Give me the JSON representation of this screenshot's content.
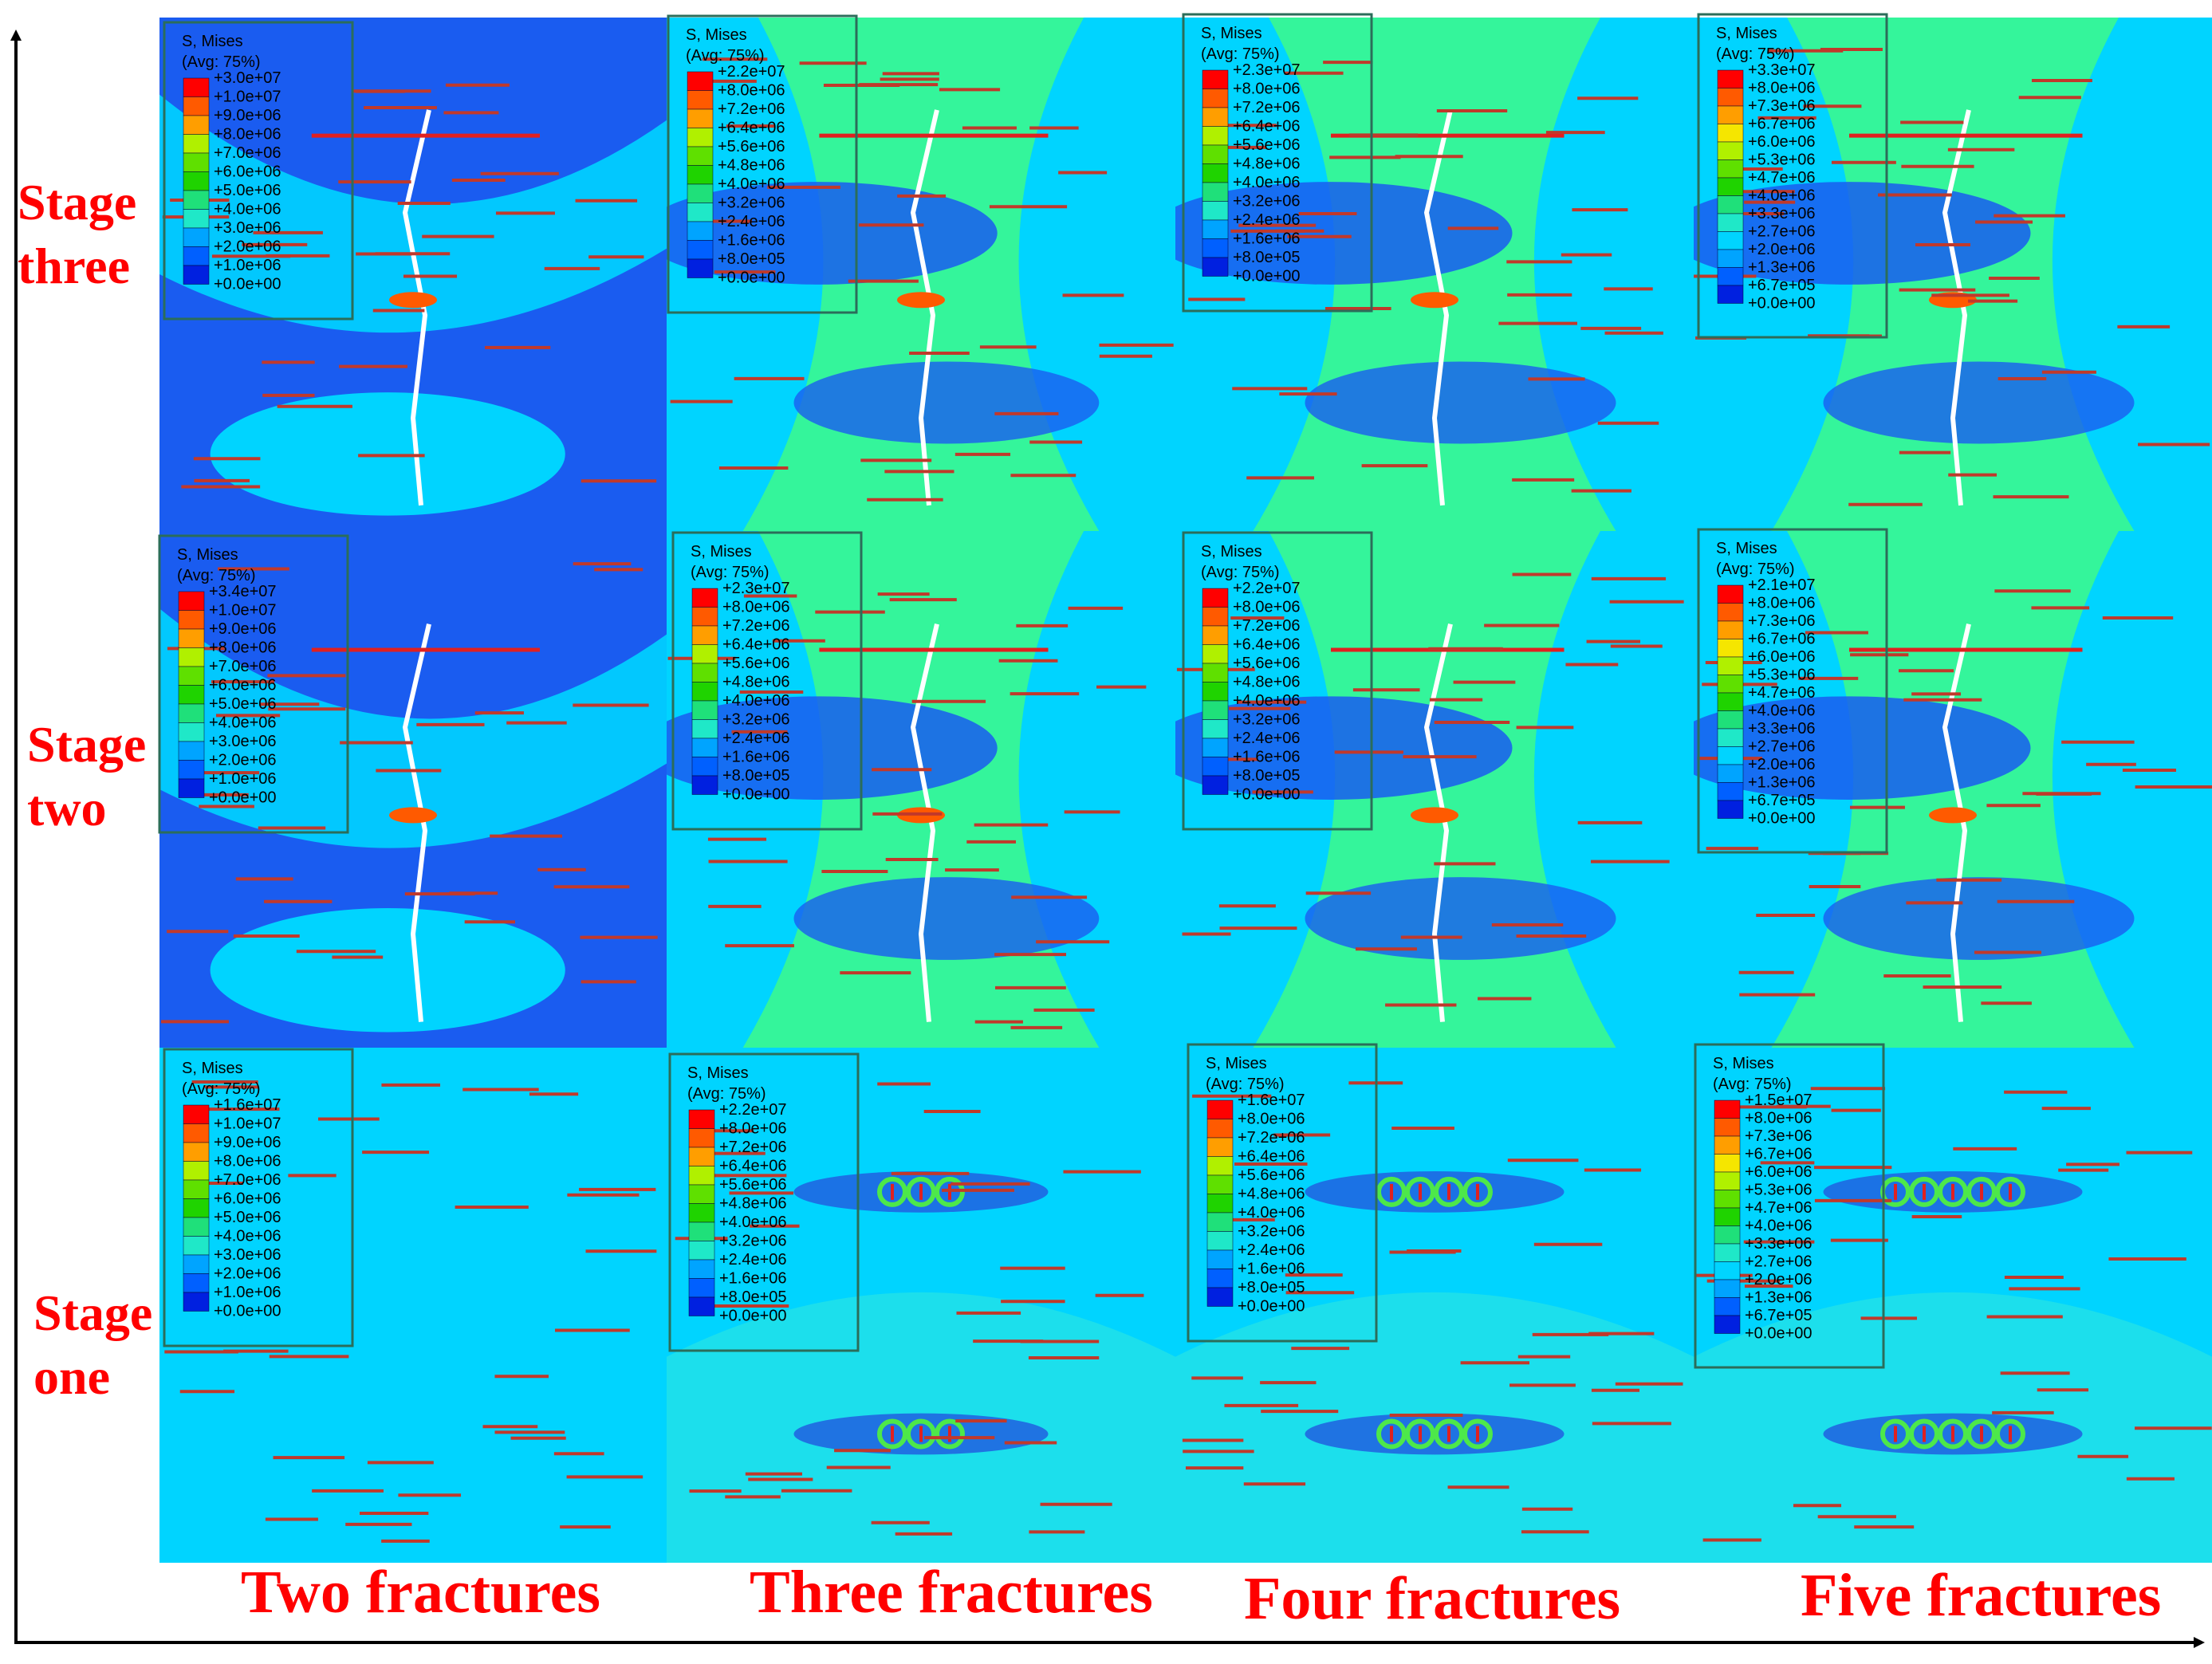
{
  "axes": {
    "x_arrow": "horizontal-axis-arrow",
    "y_arrow": "vertical-axis-arrow"
  },
  "row_labels": [
    [
      "Stage",
      "three"
    ],
    [
      "Stage",
      "two"
    ],
    [
      "Stage",
      "one"
    ]
  ],
  "column_labels": [
    "Two fractures",
    "Three fractures",
    "Four fractures",
    "Five fractures"
  ],
  "colors": {
    "label_red": "#ff0000",
    "fracture_line": "#c0392b",
    "dark_blue": "#1a5cf0",
    "light_blue": "#00d4ff",
    "cyan": "#2fe6e0",
    "green": "#3dfa8a",
    "legend_scale": [
      "#ff0000",
      "#ff5a00",
      "#ff9e00",
      "#f5e600",
      "#b0f000",
      "#5fe000",
      "#1fd300",
      "#1fe07a",
      "#1fe8c8",
      "#00d4ff",
      "#00a4ff",
      "#0060ff",
      "#0020e0"
    ]
  },
  "legends": [
    {
      "title": "S, Mises",
      "subtitle": "(Avg: 75%)",
      "values": [
        "+3.0e+07",
        "+1.0e+07",
        "+9.0e+06",
        "+8.0e+06",
        "+7.0e+06",
        "+6.0e+06",
        "+5.0e+06",
        "+4.0e+06",
        "+3.0e+06",
        "+2.0e+06",
        "+1.0e+06",
        "+0.0e+00"
      ]
    },
    {
      "title": "S, Mises",
      "subtitle": "(Avg: 75%)",
      "values": [
        "+2.2e+07",
        "+8.0e+06",
        "+7.2e+06",
        "+6.4e+06",
        "+5.6e+06",
        "+4.8e+06",
        "+4.0e+06",
        "+3.2e+06",
        "+2.4e+06",
        "+1.6e+06",
        "+8.0e+05",
        "+0.0e+00"
      ]
    },
    {
      "title": "S, Mises",
      "subtitle": "(Avg: 75%)",
      "values": [
        "+2.3e+07",
        "+8.0e+06",
        "+7.2e+06",
        "+6.4e+06",
        "+5.6e+06",
        "+4.8e+06",
        "+4.0e+06",
        "+3.2e+06",
        "+2.4e+06",
        "+1.6e+06",
        "+8.0e+05",
        "+0.0e+00"
      ]
    },
    {
      "title": "S, Mises",
      "subtitle": "(Avg: 75%)",
      "values": [
        "+3.3e+07",
        "+8.0e+06",
        "+7.3e+06",
        "+6.7e+06",
        "+6.0e+06",
        "+5.3e+06",
        "+4.7e+06",
        "+4.0e+06",
        "+3.3e+06",
        "+2.7e+06",
        "+2.0e+06",
        "+1.3e+06",
        "+6.7e+05",
        "+0.0e+00"
      ]
    },
    {
      "title": "S, Mises",
      "subtitle": "(Avg: 75%)",
      "values": [
        "+3.4e+07",
        "+1.0e+07",
        "+9.0e+06",
        "+8.0e+06",
        "+7.0e+06",
        "+6.0e+06",
        "+5.0e+06",
        "+4.0e+06",
        "+3.0e+06",
        "+2.0e+06",
        "+1.0e+06",
        "+0.0e+00"
      ]
    },
    {
      "title": "S, Mises",
      "subtitle": "(Avg: 75%)",
      "values": [
        "+2.3e+07",
        "+8.0e+06",
        "+7.2e+06",
        "+6.4e+06",
        "+5.6e+06",
        "+4.8e+06",
        "+4.0e+06",
        "+3.2e+06",
        "+2.4e+06",
        "+1.6e+06",
        "+8.0e+05",
        "+0.0e+00"
      ]
    },
    {
      "title": "S, Mises",
      "subtitle": "(Avg: 75%)",
      "values": [
        "+2.2e+07",
        "+8.0e+06",
        "+7.2e+06",
        "+6.4e+06",
        "+5.6e+06",
        "+4.8e+06",
        "+4.0e+06",
        "+3.2e+06",
        "+2.4e+06",
        "+1.6e+06",
        "+8.0e+05",
        "+0.0e+00"
      ]
    },
    {
      "title": "S, Mises",
      "subtitle": "(Avg: 75%)",
      "values": [
        "+2.1e+07",
        "+8.0e+06",
        "+7.3e+06",
        "+6.7e+06",
        "+6.0e+06",
        "+5.3e+06",
        "+4.7e+06",
        "+4.0e+06",
        "+3.3e+06",
        "+2.7e+06",
        "+2.0e+06",
        "+1.3e+06",
        "+6.7e+05",
        "+0.0e+00"
      ]
    },
    {
      "title": "S, Mises",
      "subtitle": "(Avg: 75%)",
      "values": [
        "+1.6e+07",
        "+1.0e+07",
        "+9.0e+06",
        "+8.0e+06",
        "+7.0e+06",
        "+6.0e+06",
        "+5.0e+06",
        "+4.0e+06",
        "+3.0e+06",
        "+2.0e+06",
        "+1.0e+06",
        "+0.0e+00"
      ]
    },
    {
      "title": "S, Mises",
      "subtitle": "(Avg: 75%)",
      "values": [
        "+2.2e+07",
        "+8.0e+06",
        "+7.2e+06",
        "+6.4e+06",
        "+5.6e+06",
        "+4.8e+06",
        "+4.0e+06",
        "+3.2e+06",
        "+2.4e+06",
        "+1.6e+06",
        "+8.0e+05",
        "+0.0e+00"
      ]
    },
    {
      "title": "S, Mises",
      "subtitle": "(Avg: 75%)",
      "values": [
        "+1.6e+07",
        "+8.0e+06",
        "+7.2e+06",
        "+6.4e+06",
        "+5.6e+06",
        "+4.8e+06",
        "+4.0e+06",
        "+3.2e+06",
        "+2.4e+06",
        "+1.6e+06",
        "+8.0e+05",
        "+0.0e+00"
      ]
    },
    {
      "title": "S, Mises",
      "subtitle": "(Avg: 75%)",
      "values": [
        "+1.5e+07",
        "+8.0e+06",
        "+7.3e+06",
        "+6.7e+06",
        "+6.0e+06",
        "+5.3e+06",
        "+4.7e+06",
        "+4.0e+06",
        "+3.3e+06",
        "+2.7e+06",
        "+2.0e+06",
        "+1.3e+06",
        "+6.7e+05",
        "+0.0e+00"
      ]
    }
  ]
}
